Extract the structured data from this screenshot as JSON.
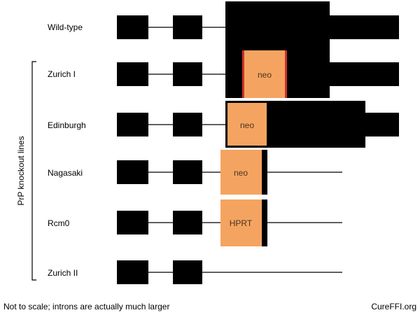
{
  "side_label": "PrP knockout lines",
  "rows": [
    {
      "id": "wild-type",
      "label": "Wild-type",
      "insert": null
    },
    {
      "id": "zurich-i",
      "label": "Zurich I",
      "insert": {
        "label": "neo",
        "red_edges": true
      }
    },
    {
      "id": "edinburgh",
      "label": "Edinburgh",
      "insert": {
        "label": "neo",
        "red_edges": false
      }
    },
    {
      "id": "nagasaki",
      "label": "Nagasaki",
      "insert": {
        "label": "neo",
        "red_edges": false
      }
    },
    {
      "id": "rcm0",
      "label": "Rcm0",
      "insert": {
        "label": "HPRT",
        "red_edges": false
      }
    },
    {
      "id": "zurich-ii",
      "label": "Zurich II",
      "insert": null
    }
  ],
  "footer": {
    "note": "Not to scale; introns are actually much larger",
    "credit": "CureFFI.org"
  },
  "colors": {
    "exon": "#000000",
    "insert": "#f4a460",
    "insert_edge": "#d0302a",
    "line": "#000000"
  }
}
